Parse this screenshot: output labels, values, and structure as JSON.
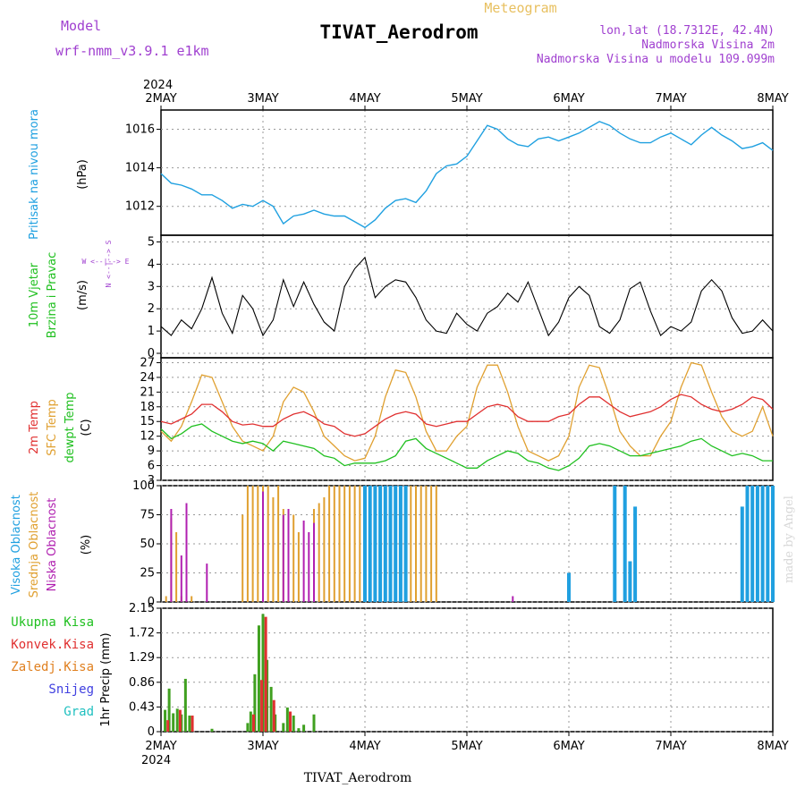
{
  "header": {
    "model_label": "Model",
    "model_name": "wrf-nmm_v3.9.1 e1km",
    "title": "TIVAT_Aerodrom",
    "subtitle": "Meteogram",
    "lonlat": "lon,lat (18.7312E, 42.4N)",
    "height_2m": "Nadmorska Visina 2m",
    "model_height": "Nadmorska Visina u modelu 109.099m",
    "footer_station": "TIVAT_Aerodrom",
    "credit": "made by Angel",
    "year_top": "2024",
    "year_bottom": "2024"
  },
  "colors": {
    "pressure": "#1fa0e0",
    "wind_black": "#000000",
    "temp_red": "#e03030",
    "temp_sfc": "#e0a030",
    "dewpt": "#20c020",
    "cloud_high": "#20a0e0",
    "cloud_mid": "#e0a030",
    "cloud_low": "#b020b0",
    "precip_total": "#40a020",
    "precip_conv": "#e03030",
    "purple_text": "#a040d0"
  },
  "chart_data": [
    {
      "type": "line",
      "panel": "pressure",
      "ylabel_1": "Pritisak na nivou mora",
      "ylabel_2": "(hPa)",
      "ylim": [
        1010.5,
        1017
      ],
      "yticks": [
        "1012",
        "1014",
        "1016"
      ],
      "x_days": [
        "2MAY",
        "3MAY",
        "4MAY",
        "5MAY",
        "6MAY",
        "7MAY",
        "8MAY"
      ],
      "series": [
        {
          "name": "Pritisak na nivou mora",
          "x": [
            0,
            0.1,
            0.2,
            0.3,
            0.4,
            0.5,
            0.6,
            0.7,
            0.8,
            0.9,
            1.0,
            1.1,
            1.2,
            1.3,
            1.4,
            1.5,
            1.6,
            1.7,
            1.8,
            1.9,
            2.0,
            2.1,
            2.2,
            2.3,
            2.4,
            2.5,
            2.6,
            2.7,
            2.8,
            2.9,
            3.0,
            3.1,
            3.2,
            3.3,
            3.4,
            3.5,
            3.6,
            3.7,
            3.8,
            3.9,
            4.0,
            4.1,
            4.2,
            4.3,
            4.4,
            4.5,
            4.6,
            4.7,
            4.8,
            4.9,
            5.0,
            5.1,
            5.2,
            5.3,
            5.4,
            5.5,
            5.6,
            5.7,
            5.8,
            5.9,
            6.0
          ],
          "values": [
            1013.7,
            1013.2,
            1013.1,
            1012.9,
            1012.6,
            1012.6,
            1012.3,
            1011.9,
            1012.1,
            1012.0,
            1012.3,
            1012.0,
            1011.1,
            1011.5,
            1011.6,
            1011.8,
            1011.6,
            1011.5,
            1011.5,
            1011.2,
            1010.9,
            1011.3,
            1011.9,
            1012.3,
            1012.4,
            1012.2,
            1012.8,
            1013.7,
            1014.1,
            1014.2,
            1014.6,
            1015.4,
            1016.2,
            1016.0,
            1015.5,
            1015.2,
            1015.1,
            1015.5,
            1015.6,
            1015.4,
            1015.6,
            1015.8,
            1016.1,
            1016.4,
            1016.2,
            1015.8,
            1015.5,
            1015.3,
            1015.3,
            1015.6,
            1015.8,
            1015.5,
            1015.2,
            1015.7,
            1016.1,
            1015.7,
            1015.4,
            1015.0,
            1015.1,
            1015.3,
            1014.9
          ]
        }
      ]
    },
    {
      "type": "line",
      "panel": "wind",
      "ylabel_1": "10m Vjetar",
      "ylabel_2": "Brzina i Pravac",
      "ylabel_3": "(m/s)",
      "compass": "N\n^\nW <-|-> E\nv\nS",
      "compass_lines": [
        "W <--|--> E",
        "N <--|--> S"
      ],
      "ylim": [
        -0.2,
        5.3
      ],
      "yticks": [
        "0",
        "1",
        "2",
        "3",
        "4",
        "5"
      ],
      "series": [
        {
          "name": "10m Vjetar",
          "x": [
            0,
            0.1,
            0.2,
            0.3,
            0.4,
            0.5,
            0.6,
            0.7,
            0.8,
            0.9,
            1.0,
            1.1,
            1.2,
            1.3,
            1.4,
            1.5,
            1.6,
            1.7,
            1.8,
            1.9,
            2.0,
            2.1,
            2.2,
            2.3,
            2.4,
            2.5,
            2.6,
            2.7,
            2.8,
            2.9,
            3.0,
            3.1,
            3.2,
            3.3,
            3.4,
            3.5,
            3.6,
            3.7,
            3.8,
            3.9,
            4.0,
            4.1,
            4.2,
            4.3,
            4.4,
            4.5,
            4.6,
            4.7,
            4.8,
            4.9,
            5.0,
            5.1,
            5.2,
            5.3,
            5.4,
            5.5,
            5.6,
            5.7,
            5.8,
            5.9,
            6.0
          ],
          "values": [
            1.2,
            0.8,
            1.5,
            1.1,
            2.0,
            3.4,
            1.8,
            0.9,
            2.6,
            2.0,
            0.8,
            1.5,
            3.3,
            2.1,
            3.2,
            2.2,
            1.4,
            1.0,
            3.0,
            3.8,
            4.3,
            2.5,
            3.0,
            3.3,
            3.2,
            2.5,
            1.5,
            1.0,
            0.9,
            1.8,
            1.3,
            1.0,
            1.8,
            2.1,
            2.7,
            2.3,
            3.2,
            2.0,
            0.8,
            1.4,
            2.5,
            3.0,
            2.6,
            1.2,
            0.9,
            1.5,
            2.9,
            3.2,
            1.9,
            0.8,
            1.2,
            1.0,
            1.4,
            2.8,
            3.3,
            2.8,
            1.6,
            0.9,
            1.0,
            1.5,
            1.0
          ]
        }
      ]
    },
    {
      "type": "line",
      "panel": "temperature",
      "ylabel_1": "2m Temp",
      "ylabel_2": "SFC Temp",
      "ylabel_3": "dewpt Temp",
      "ylabel_4": "(C)",
      "ylim": [
        3,
        28
      ],
      "yticks": [
        "3",
        "6",
        "9",
        "12",
        "15",
        "18",
        "21",
        "24",
        "27"
      ],
      "series": [
        {
          "name": "2m Temp",
          "x": [
            0,
            0.1,
            0.2,
            0.3,
            0.4,
            0.5,
            0.6,
            0.7,
            0.8,
            0.9,
            1.0,
            1.1,
            1.2,
            1.3,
            1.4,
            1.5,
            1.6,
            1.7,
            1.8,
            1.9,
            2.0,
            2.1,
            2.2,
            2.3,
            2.4,
            2.5,
            2.6,
            2.7,
            2.8,
            2.9,
            3.0,
            3.1,
            3.2,
            3.3,
            3.4,
            3.5,
            3.6,
            3.7,
            3.8,
            3.9,
            4.0,
            4.1,
            4.2,
            4.3,
            4.4,
            4.5,
            4.6,
            4.7,
            4.8,
            4.9,
            5.0,
            5.1,
            5.2,
            5.3,
            5.4,
            5.5,
            5.6,
            5.7,
            5.8,
            5.9,
            6.0
          ],
          "values": [
            15,
            14.5,
            15.5,
            16.5,
            18.5,
            18.5,
            17,
            15,
            14.3,
            14.5,
            14,
            14,
            15.5,
            16.5,
            17,
            16,
            14.5,
            14,
            12.5,
            12,
            12.5,
            14,
            15.5,
            16.5,
            17,
            16.5,
            14.5,
            14,
            14.5,
            15,
            15,
            16.5,
            18,
            18.5,
            18,
            16,
            15,
            15,
            15,
            16,
            16.5,
            18.5,
            20,
            20,
            18.5,
            17,
            16,
            16.5,
            17,
            18,
            19.5,
            20.5,
            20,
            18.5,
            17.5,
            17,
            17.5,
            18.5,
            20,
            19.5,
            17.5
          ]
        },
        {
          "name": "SFC Temp",
          "x": [
            0,
            0.1,
            0.2,
            0.3,
            0.4,
            0.5,
            0.6,
            0.7,
            0.8,
            0.9,
            1.0,
            1.1,
            1.2,
            1.3,
            1.4,
            1.5,
            1.6,
            1.7,
            1.8,
            1.9,
            2.0,
            2.1,
            2.2,
            2.3,
            2.4,
            2.5,
            2.6,
            2.7,
            2.8,
            2.9,
            3.0,
            3.1,
            3.2,
            3.3,
            3.4,
            3.5,
            3.6,
            3.7,
            3.8,
            3.9,
            4.0,
            4.1,
            4.2,
            4.3,
            4.4,
            4.5,
            4.6,
            4.7,
            4.8,
            4.9,
            5.0,
            5.1,
            5.2,
            5.3,
            5.4,
            5.5,
            5.6,
            5.7,
            5.8,
            5.9,
            6.0
          ],
          "values": [
            13,
            11,
            14,
            19,
            24.5,
            24,
            19,
            14,
            11,
            10,
            9,
            12,
            19,
            22,
            21,
            17,
            12,
            10,
            8,
            7,
            7.5,
            12,
            20,
            25.5,
            25,
            20,
            13,
            9,
            9,
            12,
            14,
            22,
            26.5,
            26.5,
            21,
            14,
            9,
            8,
            7,
            8,
            12,
            22,
            26.5,
            26,
            20,
            13,
            10,
            8,
            8,
            12,
            15,
            22,
            27,
            26.5,
            21,
            16,
            13,
            12,
            13,
            18,
            12
          ]
        },
        {
          "name": "dewpt Temp",
          "x": [
            0,
            0.1,
            0.2,
            0.3,
            0.4,
            0.5,
            0.6,
            0.7,
            0.8,
            0.9,
            1.0,
            1.1,
            1.2,
            1.3,
            1.4,
            1.5,
            1.6,
            1.7,
            1.8,
            1.9,
            2.0,
            2.1,
            2.2,
            2.3,
            2.4,
            2.5,
            2.6,
            2.7,
            2.8,
            2.9,
            3.0,
            3.1,
            3.2,
            3.3,
            3.4,
            3.5,
            3.6,
            3.7,
            3.8,
            3.9,
            4.0,
            4.1,
            4.2,
            4.3,
            4.4,
            4.5,
            4.6,
            4.7,
            4.8,
            4.9,
            5.0,
            5.1,
            5.2,
            5.3,
            5.4,
            5.5,
            5.6,
            5.7,
            5.8,
            5.9,
            6.0
          ],
          "values": [
            13.5,
            11.5,
            12.5,
            14,
            14.5,
            13,
            12,
            11,
            10.5,
            11,
            10.5,
            9,
            11,
            10.5,
            10,
            9.5,
            8,
            7.5,
            6,
            6.5,
            6.5,
            6.5,
            7,
            8,
            11,
            11.5,
            9.5,
            8.5,
            7.5,
            6.5,
            5.5,
            5.5,
            7,
            8,
            9,
            8.5,
            7,
            6.5,
            5.5,
            5,
            6,
            7.5,
            10,
            10.5,
            10,
            9,
            8,
            8,
            8.5,
            9,
            9.5,
            10,
            11,
            11.5,
            10,
            9,
            8,
            8.5,
            8,
            7,
            7
          ]
        }
      ]
    },
    {
      "type": "bar",
      "panel": "clouds",
      "ylabel_1": "Visoka Oblacnost",
      "ylabel_2": "Srednja Oblacnost",
      "ylabel_3": "Niska Oblacnost",
      "ylabel_4": "(%)",
      "ylim": [
        0,
        100
      ],
      "yticks": [
        "0",
        "25",
        "50",
        "75",
        "100"
      ],
      "series": [
        {
          "name": "Visoka Oblacnost",
          "x": [
            2.0,
            2.05,
            2.1,
            2.15,
            2.2,
            2.25,
            2.3,
            2.35,
            2.4,
            4.0,
            4.45,
            4.55,
            4.6,
            4.65,
            5.7,
            5.75,
            5.8,
            5.85,
            5.9,
            5.95,
            6.0
          ],
          "values": [
            100,
            100,
            100,
            100,
            100,
            100,
            100,
            100,
            100,
            25,
            100,
            100,
            35,
            82,
            82,
            100,
            100,
            100,
            100,
            100,
            100
          ]
        },
        {
          "name": "Srednja Oblacnost",
          "x": [
            0.05,
            0.1,
            0.15,
            0.2,
            0.3,
            0.8,
            0.85,
            0.9,
            0.95,
            1.0,
            1.05,
            1.1,
            1.15,
            1.2,
            1.3,
            1.35,
            1.5,
            1.55,
            1.6,
            1.65,
            1.7,
            1.75,
            1.8,
            1.85,
            1.9,
            1.95,
            2.45,
            2.5,
            2.55,
            2.6,
            2.65,
            2.7,
            5.7,
            5.75,
            5.8
          ],
          "values": [
            5,
            72,
            60,
            5,
            5,
            75,
            100,
            100,
            100,
            100,
            100,
            90,
            100,
            80,
            75,
            60,
            80,
            85,
            90,
            100,
            100,
            100,
            100,
            100,
            100,
            100,
            100,
            100,
            100,
            100,
            100,
            100,
            80,
            90,
            100
          ]
        },
        {
          "name": "Niska Oblacnost",
          "x": [
            0.1,
            0.2,
            0.25,
            0.45,
            1.0,
            1.2,
            1.25,
            1.4,
            1.45,
            1.5,
            3.45
          ],
          "values": [
            80,
            40,
            85,
            33,
            95,
            75,
            80,
            70,
            60,
            68,
            5
          ]
        }
      ]
    },
    {
      "type": "bar",
      "panel": "precip",
      "ylabel_1": "1hr Precip (mm)",
      "legend": [
        "Ukupna Kisa",
        "Konvek.Kisa",
        "Zaledj.Kisa",
        "Snijeg",
        "Grad"
      ],
      "ylim": [
        0,
        2.15
      ],
      "yticks": [
        "0",
        "0.43",
        "0.86",
        "1.29",
        "1.72",
        "2.15"
      ],
      "series": [
        {
          "name": "Ukupna Kisa",
          "x": [
            0.04,
            0.08,
            0.12,
            0.16,
            0.2,
            0.24,
            0.28,
            0.5,
            0.85,
            0.88,
            0.92,
            0.96,
            1.0,
            1.04,
            1.08,
            1.12,
            1.2,
            1.24,
            1.3,
            1.35,
            1.4,
            1.5
          ],
          "values": [
            0.38,
            0.75,
            0.32,
            0.4,
            0.3,
            0.92,
            0.28,
            0.05,
            0.15,
            0.35,
            1.0,
            1.85,
            2.05,
            1.25,
            0.78,
            0.3,
            0.15,
            0.42,
            0.28,
            0.06,
            0.12,
            0.3
          ]
        },
        {
          "name": "Konvek.Kisa",
          "x": [
            0.05,
            0.17,
            0.29,
            0.89,
            0.97,
            1.01,
            1.09,
            1.25
          ],
          "values": [
            0.2,
            0.38,
            0.28,
            0.3,
            0.9,
            2.0,
            0.55,
            0.35
          ]
        }
      ]
    }
  ]
}
